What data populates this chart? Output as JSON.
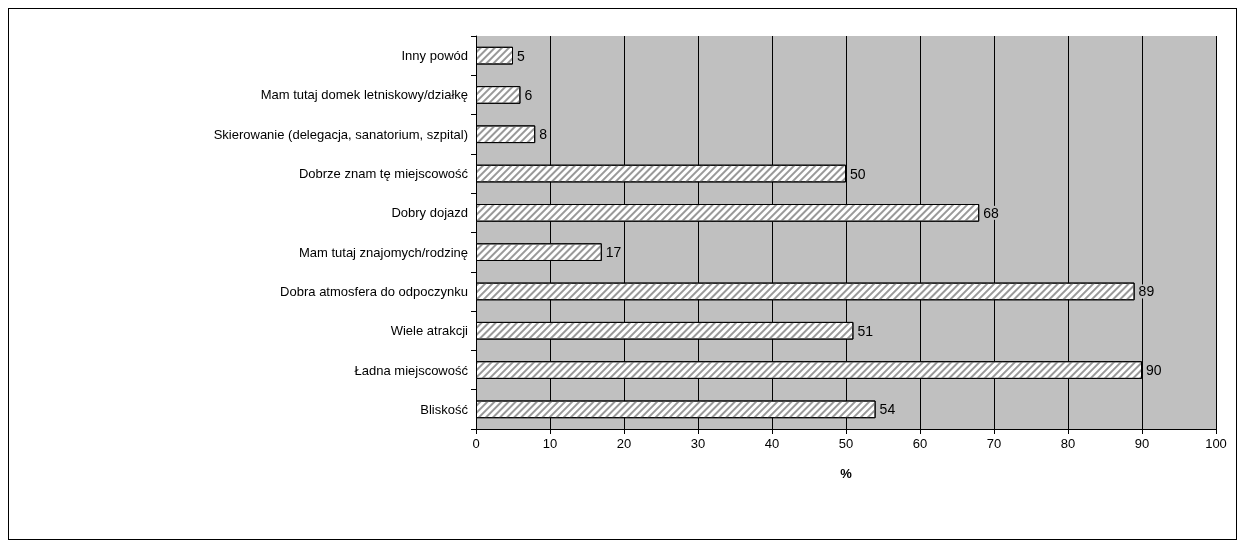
{
  "chart_data": {
    "type": "bar",
    "orientation": "horizontal",
    "xlabel": "%",
    "categories": [
      "Inny powód",
      "Mam tutaj domek letniskowy/działkę",
      "Skierowanie (delegacja, sanatorium, szpital)",
      "Dobrze znam tę miejscowość",
      "Dobry dojazd",
      "Mam tutaj znajomych/rodzinę",
      "Dobra atmosfera do odpoczynku",
      "Wiele atrakcji",
      "Ładna miejscowość",
      "Bliskość"
    ],
    "values": [
      5,
      6,
      8,
      50,
      68,
      17,
      89,
      51,
      90,
      54
    ],
    "color": "#ffffff",
    "xlim": [
      0,
      100
    ],
    "xticks": [
      0,
      10,
      20,
      30,
      40,
      50,
      60,
      70,
      80,
      90,
      100
    ],
    "grid": "x",
    "data_labels": true
  }
}
